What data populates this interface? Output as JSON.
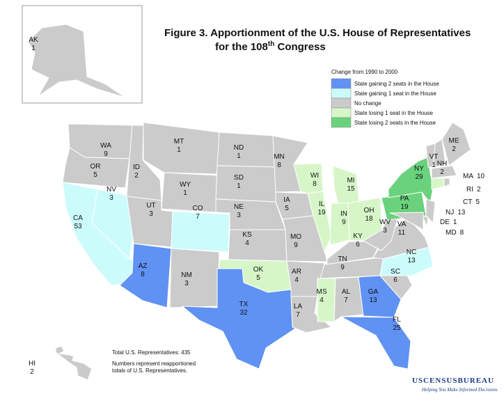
{
  "title_line1": "Figure 3.  Apportionment of the U.S. House of Representatives",
  "title_line2": "for the 108",
  "title_sup": "th",
  "title_line2_end": " Congress",
  "legend": {
    "title": "Change from 1990 to 2000",
    "items": [
      {
        "label": "State gaining 2 seats in the House",
        "color": "#5f92f2"
      },
      {
        "label": "State gaining 1 seat in the House",
        "color": "#ccfbfc"
      },
      {
        "label": "No change",
        "color": "#cbcbcb"
      },
      {
        "label": "State losing 1 seat in the House",
        "color": "#d6f6c8"
      },
      {
        "label": "State losing 2 seats in the House",
        "color": "#6ad27c"
      }
    ]
  },
  "states": [
    {
      "abbr": "AK",
      "seats": "1",
      "color": "#cbcbcb"
    },
    {
      "abbr": "WA",
      "seats": "9",
      "color": "#cbcbcb"
    },
    {
      "abbr": "OR",
      "seats": "5",
      "color": "#cbcbcb"
    },
    {
      "abbr": "CA",
      "seats": "53",
      "color": "#ccfbfc"
    },
    {
      "abbr": "NV",
      "seats": "3",
      "color": "#ccfbfc"
    },
    {
      "abbr": "ID",
      "seats": "2",
      "color": "#cbcbcb"
    },
    {
      "abbr": "MT",
      "seats": "1",
      "color": "#cbcbcb"
    },
    {
      "abbr": "WY",
      "seats": "1",
      "color": "#cbcbcb"
    },
    {
      "abbr": "UT",
      "seats": "3",
      "color": "#cbcbcb"
    },
    {
      "abbr": "CO",
      "seats": "7",
      "color": "#ccfbfc"
    },
    {
      "abbr": "AZ",
      "seats": "8",
      "color": "#5f92f2"
    },
    {
      "abbr": "NM",
      "seats": "3",
      "color": "#cbcbcb"
    },
    {
      "abbr": "ND",
      "seats": "1",
      "color": "#cbcbcb"
    },
    {
      "abbr": "SD",
      "seats": "1",
      "color": "#cbcbcb"
    },
    {
      "abbr": "NE",
      "seats": "3",
      "color": "#cbcbcb"
    },
    {
      "abbr": "KS",
      "seats": "4",
      "color": "#cbcbcb"
    },
    {
      "abbr": "OK",
      "seats": "5",
      "color": "#d6f6c8"
    },
    {
      "abbr": "TX",
      "seats": "32",
      "color": "#5f92f2"
    },
    {
      "abbr": "MN",
      "seats": "8",
      "color": "#cbcbcb"
    },
    {
      "abbr": "IA",
      "seats": "5",
      "color": "#cbcbcb"
    },
    {
      "abbr": "MO",
      "seats": "9",
      "color": "#cbcbcb"
    },
    {
      "abbr": "AR",
      "seats": "4",
      "color": "#cbcbcb"
    },
    {
      "abbr": "LA",
      "seats": "7",
      "color": "#cbcbcb"
    },
    {
      "abbr": "WI",
      "seats": "8",
      "color": "#d6f6c8"
    },
    {
      "abbr": "IL",
      "seats": "19",
      "color": "#d6f6c8"
    },
    {
      "abbr": "MI",
      "seats": "15",
      "color": "#d6f6c8"
    },
    {
      "abbr": "IN",
      "seats": "9",
      "color": "#d6f6c8"
    },
    {
      "abbr": "OH",
      "seats": "18",
      "color": "#d6f6c8"
    },
    {
      "abbr": "KY",
      "seats": "6",
      "color": "#cbcbcb"
    },
    {
      "abbr": "TN",
      "seats": "9",
      "color": "#cbcbcb"
    },
    {
      "abbr": "MS",
      "seats": "4",
      "color": "#d6f6c8"
    },
    {
      "abbr": "AL",
      "seats": "7",
      "color": "#cbcbcb"
    },
    {
      "abbr": "GA",
      "seats": "13",
      "color": "#5f92f2"
    },
    {
      "abbr": "FL",
      "seats": "25",
      "color": "#5f92f2"
    },
    {
      "abbr": "SC",
      "seats": "6",
      "color": "#cbcbcb"
    },
    {
      "abbr": "NC",
      "seats": "13",
      "color": "#ccfbfc"
    },
    {
      "abbr": "VA",
      "seats": "11",
      "color": "#cbcbcb"
    },
    {
      "abbr": "WV",
      "seats": "3",
      "color": "#cbcbcb"
    },
    {
      "abbr": "PA",
      "seats": "19",
      "color": "#6ad27c"
    },
    {
      "abbr": "NY",
      "seats": "29",
      "color": "#6ad27c"
    },
    {
      "abbr": "VT",
      "seats": "1",
      "color": "#cbcbcb"
    },
    {
      "abbr": "NH",
      "seats": "2",
      "color": "#cbcbcb"
    },
    {
      "abbr": "ME",
      "seats": "2",
      "color": "#cbcbcb"
    },
    {
      "abbr": "MA",
      "seats": "10",
      "color": "#cbcbcb"
    },
    {
      "abbr": "RI",
      "seats": "2",
      "color": "#cbcbcb"
    },
    {
      "abbr": "CT",
      "seats": "5",
      "color": "#d6f6c8"
    },
    {
      "abbr": "NJ",
      "seats": "13",
      "color": "#cbcbcb"
    },
    {
      "abbr": "DE",
      "seats": "1",
      "color": "#cbcbcb"
    },
    {
      "abbr": "MD",
      "seats": "8",
      "color": "#cbcbcb"
    },
    {
      "abbr": "HI",
      "seats": "2",
      "color": "#cbcbcb"
    }
  ],
  "notes": [
    "Total U.S. Representatives: 435",
    "Numbers represent reapportioned",
    "totals of U.S. Representatives."
  ],
  "logo": {
    "name": "USCENSUSBUREAU",
    "tagline": "Helping You Make Informed Decisions"
  }
}
